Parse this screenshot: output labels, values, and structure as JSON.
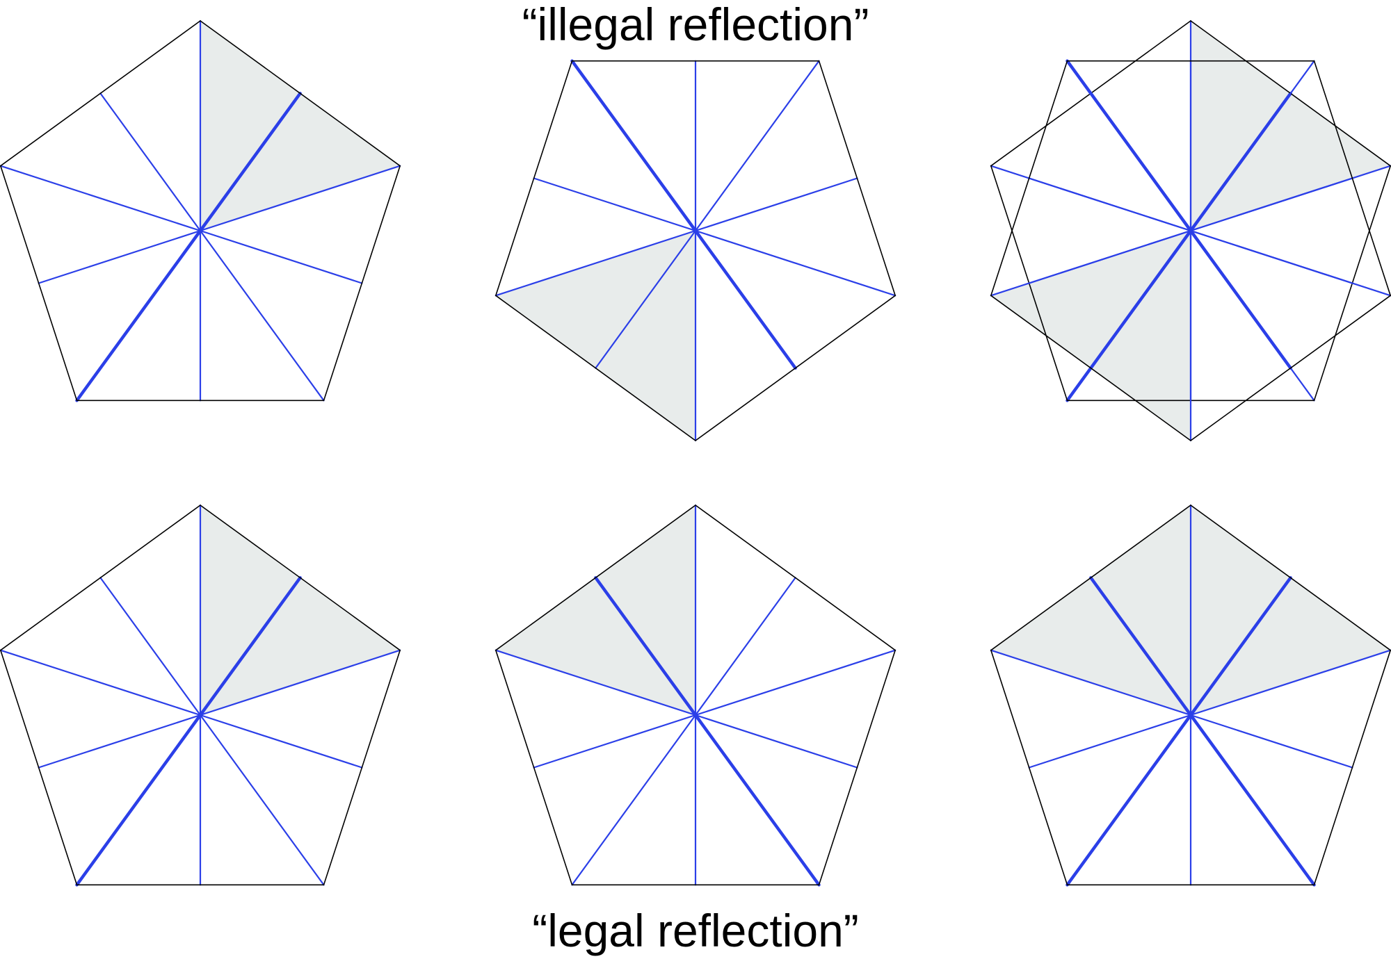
{
  "captions": {
    "top": "“illegal reflection”",
    "bottom": "“legal reflection”"
  },
  "colors": {
    "background": "#ffffff",
    "outline": "#000000",
    "mirror_line": "#2b3fe8",
    "shade": "#e8eceb"
  },
  "rows": [
    {
      "name": "illegal",
      "panels": [
        {
          "name": "original",
          "orientation": "point-up",
          "shaded_sectors": [
            0,
            1
          ],
          "bold_mirror": "diagonal-right",
          "overlay": false
        },
        {
          "name": "reflected",
          "orientation": "point-down",
          "shaded_sectors": [
            5,
            6
          ],
          "bold_mirror": "diagonal-left",
          "overlay": false
        },
        {
          "name": "superimposed",
          "orientation": "both",
          "shaded_sectors": [
            0,
            1,
            5,
            6
          ],
          "bold_mirror": "both",
          "overlay": true
        }
      ]
    },
    {
      "name": "legal",
      "panels": [
        {
          "name": "original",
          "orientation": "point-up",
          "shaded_sectors": [
            0,
            1
          ],
          "bold_mirror": "diagonal-right",
          "overlay": false
        },
        {
          "name": "reflected",
          "orientation": "point-up",
          "shaded_sectors": [
            8,
            9
          ],
          "bold_mirror": "diagonal-left",
          "overlay": false
        },
        {
          "name": "superimposed",
          "orientation": "point-up",
          "shaded_sectors": [
            0,
            1,
            8,
            9
          ],
          "bold_mirror": "both",
          "overlay": false
        }
      ]
    }
  ]
}
